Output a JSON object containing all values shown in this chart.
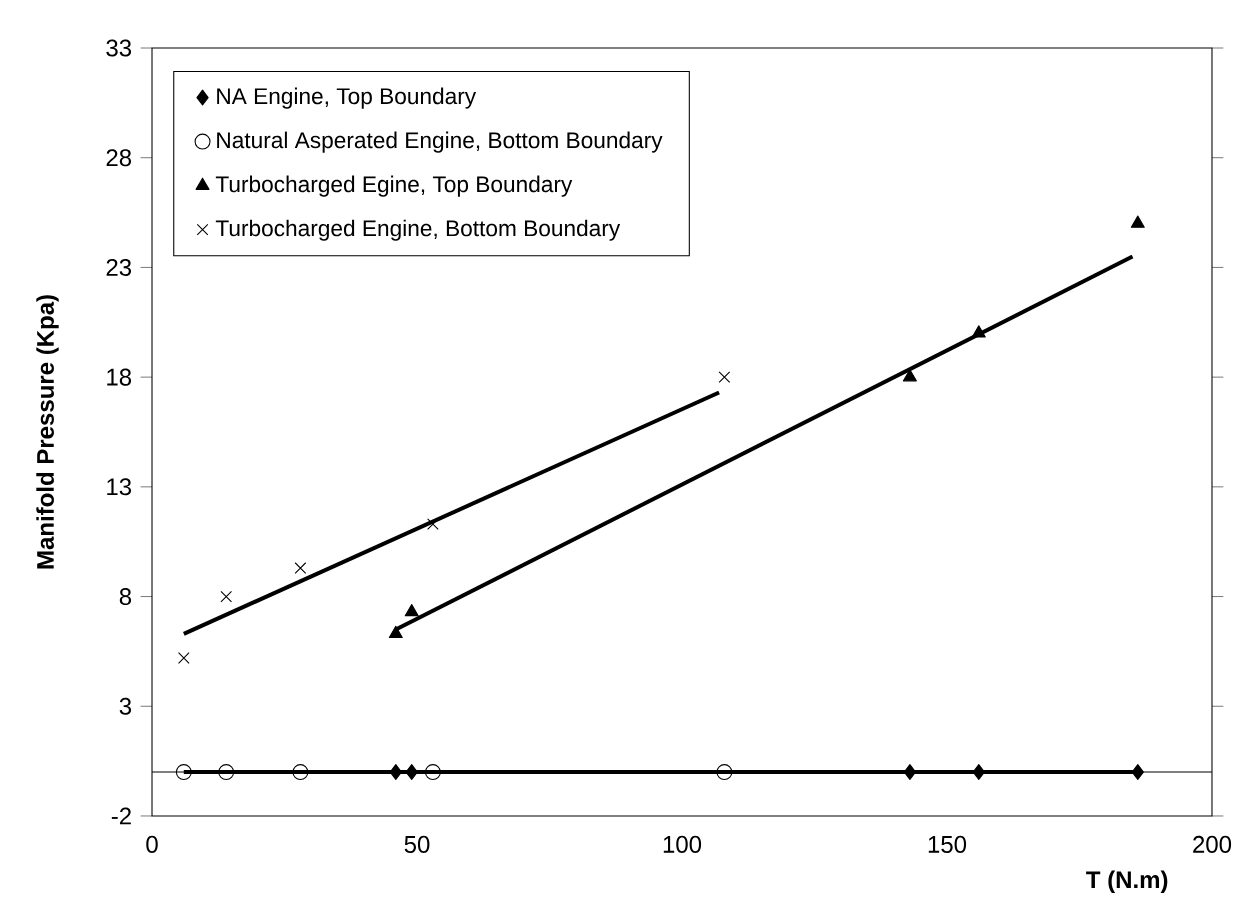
{
  "chart_data": {
    "type": "scatter",
    "xlabel": "T (N.m)",
    "ylabel": "Manifold Pressure (Kpa)",
    "xlim": [
      0,
      200
    ],
    "xticks": [
      0,
      50,
      100,
      150,
      200
    ],
    "ylim": [
      -2,
      33
    ],
    "yticks": [
      -2,
      3,
      8,
      13,
      18,
      23,
      28,
      33
    ],
    "grid": false,
    "legend": "top left",
    "ref_lines": [
      {
        "axis": "y",
        "value": 0,
        "color": "#000000"
      }
    ],
    "series": [
      {
        "name": "NA Engine, Top Boundary",
        "marker": "diamond",
        "color": "#000000",
        "x": [
          46,
          49,
          143,
          156,
          186
        ],
        "values": [
          0,
          0,
          0,
          0,
          0
        ]
      },
      {
        "name": "Natural Asperated Engine, Bottom Boundary",
        "marker": "circle",
        "color": "#000000",
        "x": [
          6,
          14,
          28,
          53,
          108
        ],
        "values": [
          0,
          0,
          0,
          0,
          0
        ]
      },
      {
        "name": "Turbocharged Egine, Top Boundary",
        "marker": "triangle",
        "color": "#000000",
        "x": [
          46,
          49,
          143,
          156,
          186
        ],
        "values": [
          6.3,
          7.3,
          18,
          20,
          25
        ]
      },
      {
        "name": "Turbocharged Engine, Bottom Boundary",
        "marker": "cross",
        "color": "#000000",
        "x": [
          6,
          14,
          28,
          53,
          108
        ],
        "values": [
          5.2,
          8,
          9.3,
          11.3,
          18
        ]
      },
      {
        "type": "line",
        "color": "#000000",
        "x": [
          6,
          186
        ],
        "values": [
          0,
          0
        ]
      },
      {
        "type": "line",
        "color": "#000000",
        "x": [
          46,
          185
        ],
        "values": [
          6.5,
          23.5
        ]
      },
      {
        "type": "line",
        "color": "#000000",
        "x": [
          6,
          107
        ],
        "values": [
          6.3,
          17.3
        ]
      }
    ]
  }
}
